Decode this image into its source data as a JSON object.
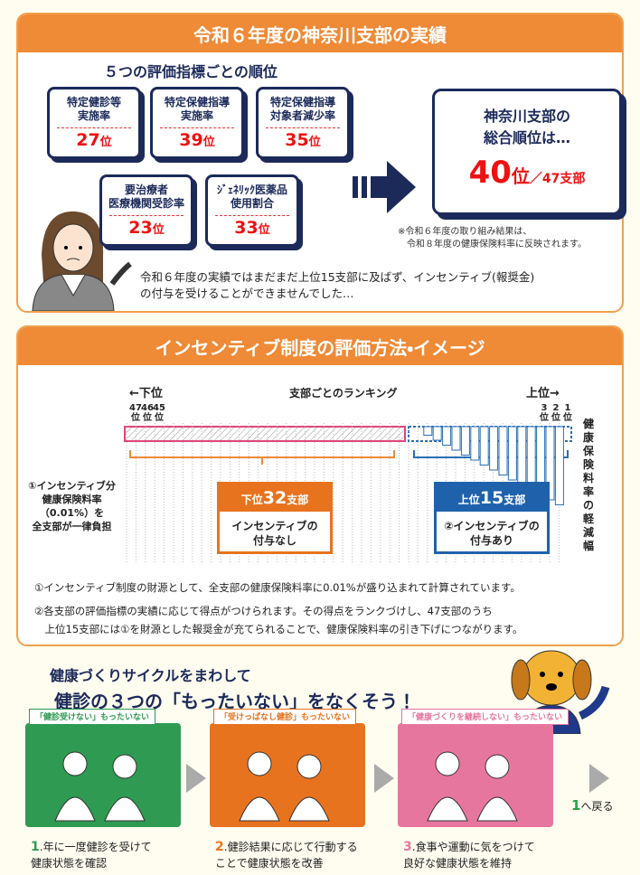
{
  "section1": {
    "title": "令和６年度の神奈川支部の実績",
    "subtitle": "５つの評価指標ごとの順位",
    "indicators": [
      {
        "label": "特定健診等\n実施率",
        "rank": "27",
        "unit": "位"
      },
      {
        "label": "特定保健指導\n実施率",
        "rank": "39",
        "unit": "位"
      },
      {
        "label": "特定保健指導\n対象者減少率",
        "rank": "35",
        "unit": "位"
      },
      {
        "label": "要治療者\n医療機関受診率",
        "rank": "23",
        "unit": "位"
      },
      {
        "label": "ｼﾞｪﾈﾘｯｸ医薬品\n使用割合",
        "rank": "33",
        "unit": "位"
      }
    ],
    "overall": {
      "label": "神奈川支部の\n総合順位は…",
      "rank": "40",
      "unit": "位",
      "total": "／47支部"
    },
    "note": "※令和６年度の取り組み結果は、\n　令和８年度の健康保険料率に反映されます。",
    "speech": "令和６年度の実績ではまだまだ上位15支部に及ばず、インセンティブ(報奨金)\nの付与を受けることができませんでした…"
  },
  "section2": {
    "title": "インセンティブ制度の評価方法・イメージ",
    "left_label": "←下位",
    "right_label": "上位→",
    "ranking_label": "支部ごとのランキング",
    "left_ranks": [
      "47\n位",
      "46\n位",
      "45\n位"
    ],
    "right_ranks": [
      "3\n位",
      "2\n位",
      "1\n位"
    ],
    "vertical_label": "健康保険料率の軽減幅",
    "side_note": "①インセンティブ分\n健康保険料率\n（0.01%）を\n全支部が一律負担",
    "lower_box": {
      "pre": "下位",
      "num": "32",
      "post": "支部",
      "body": "インセンティブの\n付与なし"
    },
    "upper_box": {
      "pre": "上位",
      "num": "15",
      "post": "支部",
      "body": "②インセンティブの\n付与あり"
    },
    "notes": [
      "①インセンティブ制度の財源として、全支部の健康保険料率に0.01%が盛り込まれて計算されています。",
      "②各支部の評価指標の実績に応じて得点がつけられます。その得点をランクづけし、47支部のうち\n　上位15支部には①を財源とした報奨金が充てられることで、健康保険料率の引き下げにつながります。"
    ]
  },
  "section3": {
    "heading1": "健康づくりサイクルをまわして",
    "heading2": "健診の３つの「もったいない」をなくそう！",
    "steps": [
      {
        "tag": "「健診受けない」もったいない",
        "num": "1",
        "text": ".年に一度健診を受けて\n健康状態を確認"
      },
      {
        "tag": "「受けっぱなし健診」もったいない",
        "num": "2",
        "text": ".健診結果に応じて行動する\nことで健康状態を改善"
      },
      {
        "tag": "「健康づくりを継続しない」もったいない",
        "num": "3",
        "text": ".食事や運動に気をつけて\n良好な健康状態を維持"
      }
    ],
    "back": {
      "num": "1",
      "text": "へ戻る"
    }
  }
}
